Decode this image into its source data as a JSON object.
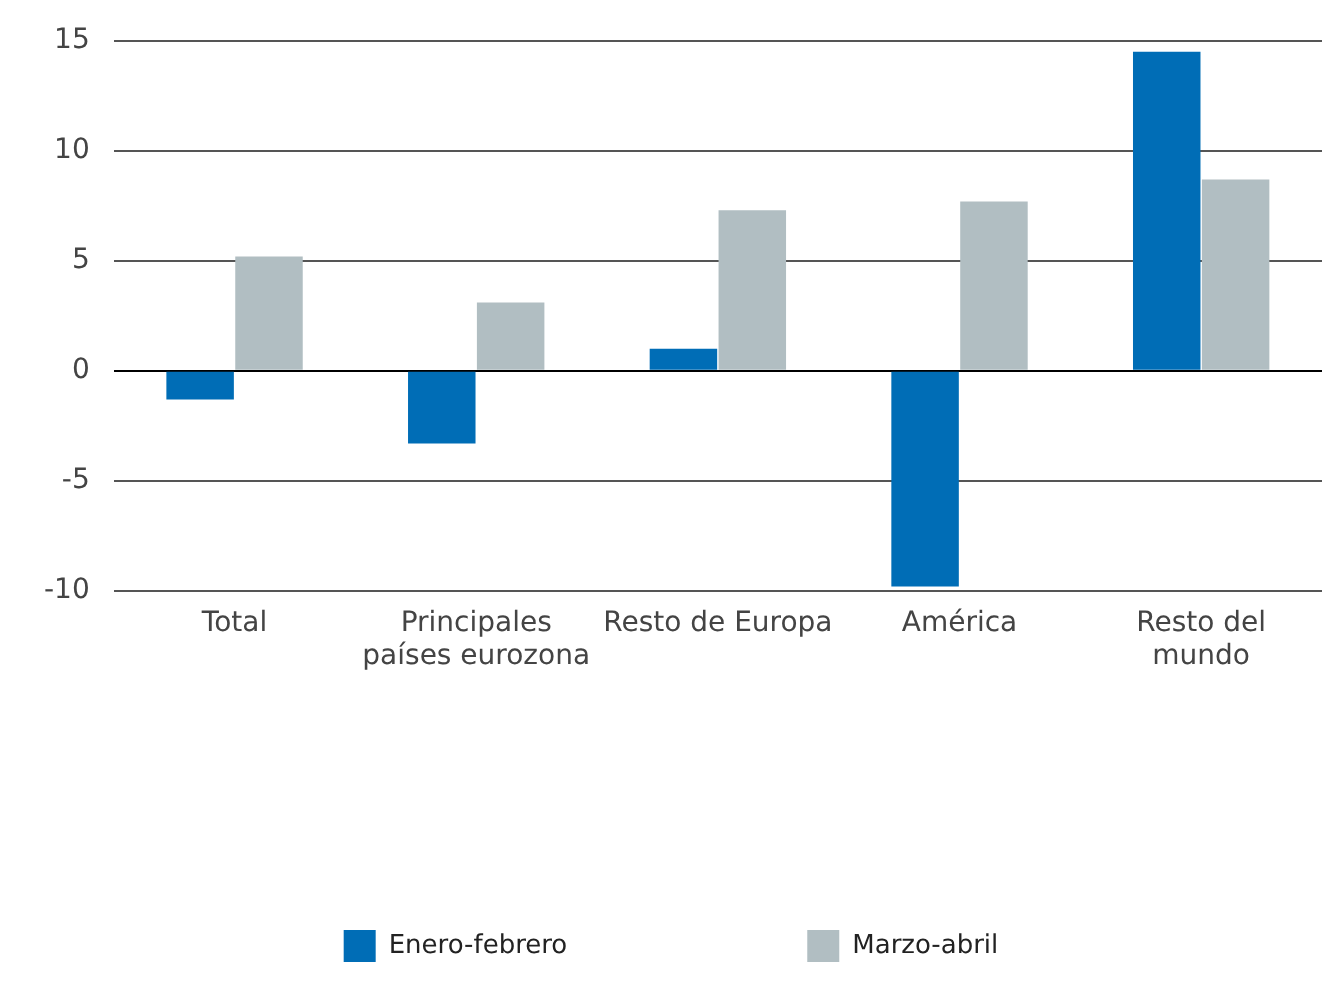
{
  "chart_data": {
    "type": "bar",
    "categories": [
      "Total",
      "Principales\npaíses eurozona",
      "Resto de Europa",
      "América",
      "Resto del\nmundo"
    ],
    "series": [
      {
        "name": "Enero-febrero",
        "color": "#006db6",
        "values": [
          -1.3,
          -3.3,
          1,
          -9.8,
          14.5
        ]
      },
      {
        "name": "Marzo-abril",
        "color": "#b1bec2",
        "values": [
          5.2,
          3.1,
          7.3,
          7.7,
          8.7
        ]
      }
    ],
    "ylim": [
      -10,
      15
    ],
    "yticks": [
      -10,
      -5,
      0,
      5,
      10,
      15
    ],
    "grid": "y",
    "legend": "bottom"
  }
}
